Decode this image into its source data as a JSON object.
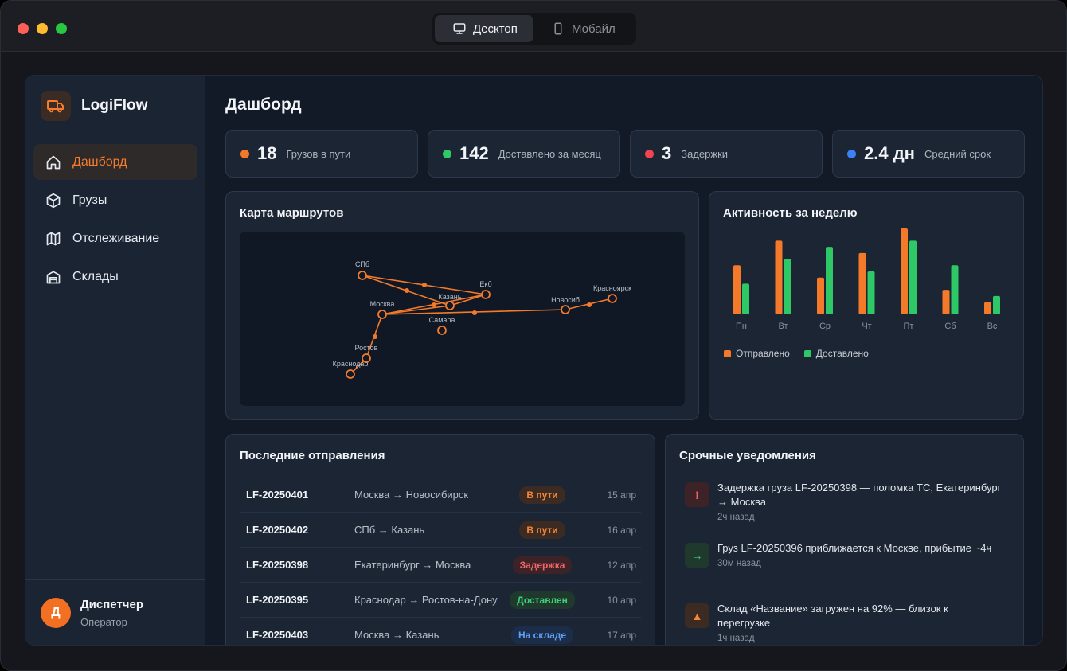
{
  "window": {
    "device_tabs": [
      {
        "label": "Десктоп",
        "active": true
      },
      {
        "label": "Мобайл",
        "active": false
      }
    ]
  },
  "sidebar": {
    "brand": "LogiFlow",
    "items": [
      {
        "label": "Дашборд",
        "icon": "home-icon",
        "active": true
      },
      {
        "label": "Грузы",
        "icon": "box-icon",
        "active": false
      },
      {
        "label": "Отслеживание",
        "icon": "map-icon",
        "active": false
      },
      {
        "label": "Склады",
        "icon": "warehouse-icon",
        "active": false
      }
    ],
    "user": {
      "initial": "Д",
      "name": "Диспетчер",
      "role": "Оператор"
    }
  },
  "main": {
    "title": "Дашборд",
    "stats": [
      {
        "value": "18",
        "label": "Грузов в пути",
        "color": "#f47a2a"
      },
      {
        "value": "142",
        "label": "Доставлено за месяц",
        "color": "#2ec866"
      },
      {
        "value": "3",
        "label": "Задержки",
        "color": "#ef4452"
      },
      {
        "value": "2.4 дн",
        "label": "Средний срок",
        "color": "#3b82f6"
      }
    ],
    "map": {
      "title": "Карта маршрутов",
      "cities": [
        {
          "name": "СПб"
        },
        {
          "name": "Екб"
        },
        {
          "name": "Казань"
        },
        {
          "name": "Москва"
        },
        {
          "name": "Новосиб"
        },
        {
          "name": "Красноярск"
        },
        {
          "name": "Самара"
        },
        {
          "name": "Ростов"
        },
        {
          "name": "Краснодар"
        }
      ]
    },
    "activity": {
      "title": "Активность за неделю",
      "legend": {
        "sent": "Отправлено",
        "delivered": "Доставлено"
      }
    },
    "shipments": {
      "title": "Последние отправления",
      "rows": [
        {
          "id": "LF-20250401",
          "route": "Москва → Новосибирск",
          "status": "В пути",
          "status_kind": "orange",
          "date": "15 апр"
        },
        {
          "id": "LF-20250402",
          "route": "СПб → Казань",
          "status": "В пути",
          "status_kind": "orange",
          "date": "16 апр"
        },
        {
          "id": "LF-20250398",
          "route": "Екатеринбург → Москва",
          "status": "Задержка",
          "status_kind": "red",
          "date": "12 апр"
        },
        {
          "id": "LF-20250395",
          "route": "Краснодар → Ростов-на-Дону",
          "status": "Доставлен",
          "status_kind": "green",
          "date": "10 апр"
        },
        {
          "id": "LF-20250403",
          "route": "Москва → Казань",
          "status": "На складе",
          "status_kind": "blue",
          "date": "17 апр"
        }
      ]
    },
    "notifications": {
      "title": "Срочные уведомления",
      "items": [
        {
          "icon": "!",
          "kind": "red",
          "text": "Задержка груза LF-20250398 — поломка ТС, Екатеринбург → Москва",
          "time": "2ч назад"
        },
        {
          "icon": "→",
          "kind": "green",
          "text": "Груз LF-20250396 приближается к Москве, прибытие ~4ч",
          "time": "30м назад"
        },
        {
          "icon": "▲",
          "kind": "orange",
          "text": "Склад «Название» загружен на 92% — близок к перегрузке",
          "time": "1ч назад"
        }
      ]
    }
  },
  "chart_data": {
    "type": "bar",
    "title": "Активность за неделю",
    "categories": [
      "Пн",
      "Вт",
      "Ср",
      "Чт",
      "Пт",
      "Сб",
      "Вс"
    ],
    "series": [
      {
        "name": "Отправлено",
        "color": "#f47a2a",
        "values": [
          40,
          60,
          30,
          50,
          70,
          20,
          10
        ]
      },
      {
        "name": "Доставлено",
        "color": "#2ec866",
        "values": [
          25,
          45,
          55,
          35,
          60,
          40,
          15
        ]
      }
    ],
    "ylim": [
      0,
      70
    ],
    "legend": "bottom-left"
  }
}
